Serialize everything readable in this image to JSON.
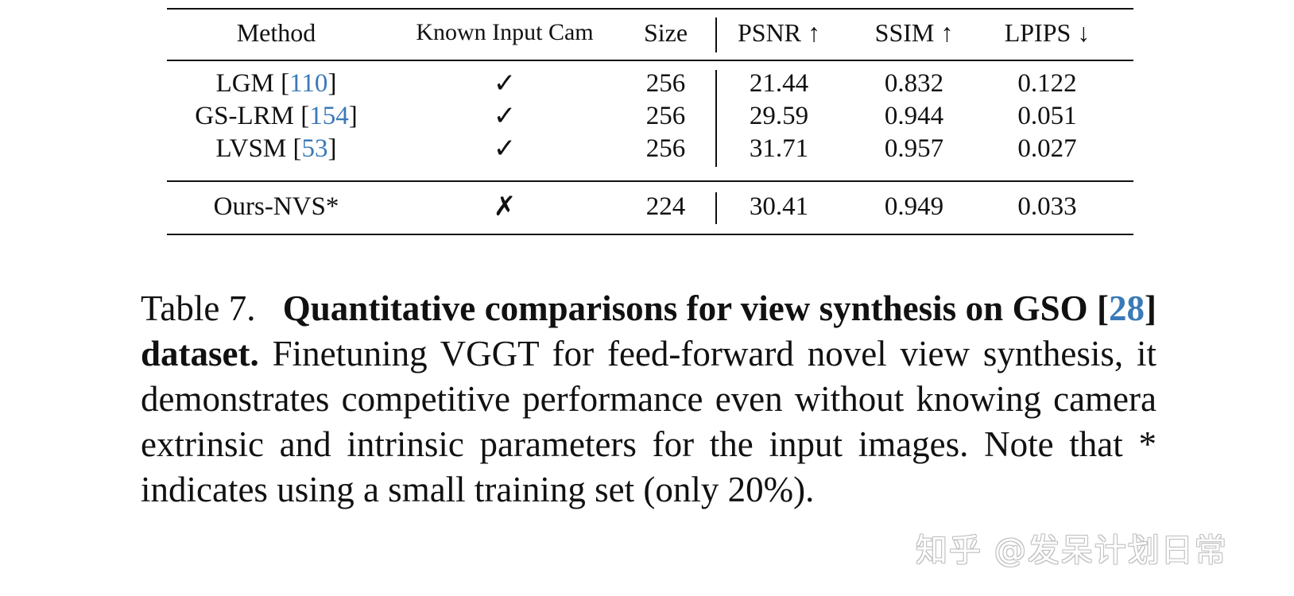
{
  "table": {
    "headers": {
      "method": "Method",
      "known_input_cam": "Known Input Cam",
      "size": "Size",
      "psnr": "PSNR ↑",
      "ssim": "SSIM ↑",
      "lpips": "LPIPS ↓"
    },
    "rows": [
      {
        "method": "LGM",
        "cite": "110",
        "known": "✓",
        "size": "256",
        "psnr": "21.44",
        "ssim": "0.832",
        "lpips": "0.122"
      },
      {
        "method": "GS-LRM",
        "cite": "154",
        "known": "✓",
        "size": "256",
        "psnr": "29.59",
        "ssim": "0.944",
        "lpips": "0.051"
      },
      {
        "method": "LVSM",
        "cite": "53",
        "known": "✓",
        "size": "256",
        "psnr": "31.71",
        "ssim": "0.957",
        "lpips": "0.027"
      }
    ],
    "ours": {
      "method": "Ours-NVS*",
      "known": "✗",
      "size": "224",
      "psnr": "30.41",
      "ssim": "0.949",
      "lpips": "0.033"
    }
  },
  "caption": {
    "label": "Table 7.",
    "bold_pre": "Quantitative comparisons for view synthesis on GSO [",
    "bold_cite": "28",
    "bold_post": "] dataset.",
    "body": "Finetuning VGGT for feed-forward novel view synthesis, it demonstrates competitive performance even without knowing camera extrinsic and intrinsic parameters for the input images. Note that * indicates using a small training set (only 20%)."
  },
  "watermark": "知乎 @发呆计划日常"
}
